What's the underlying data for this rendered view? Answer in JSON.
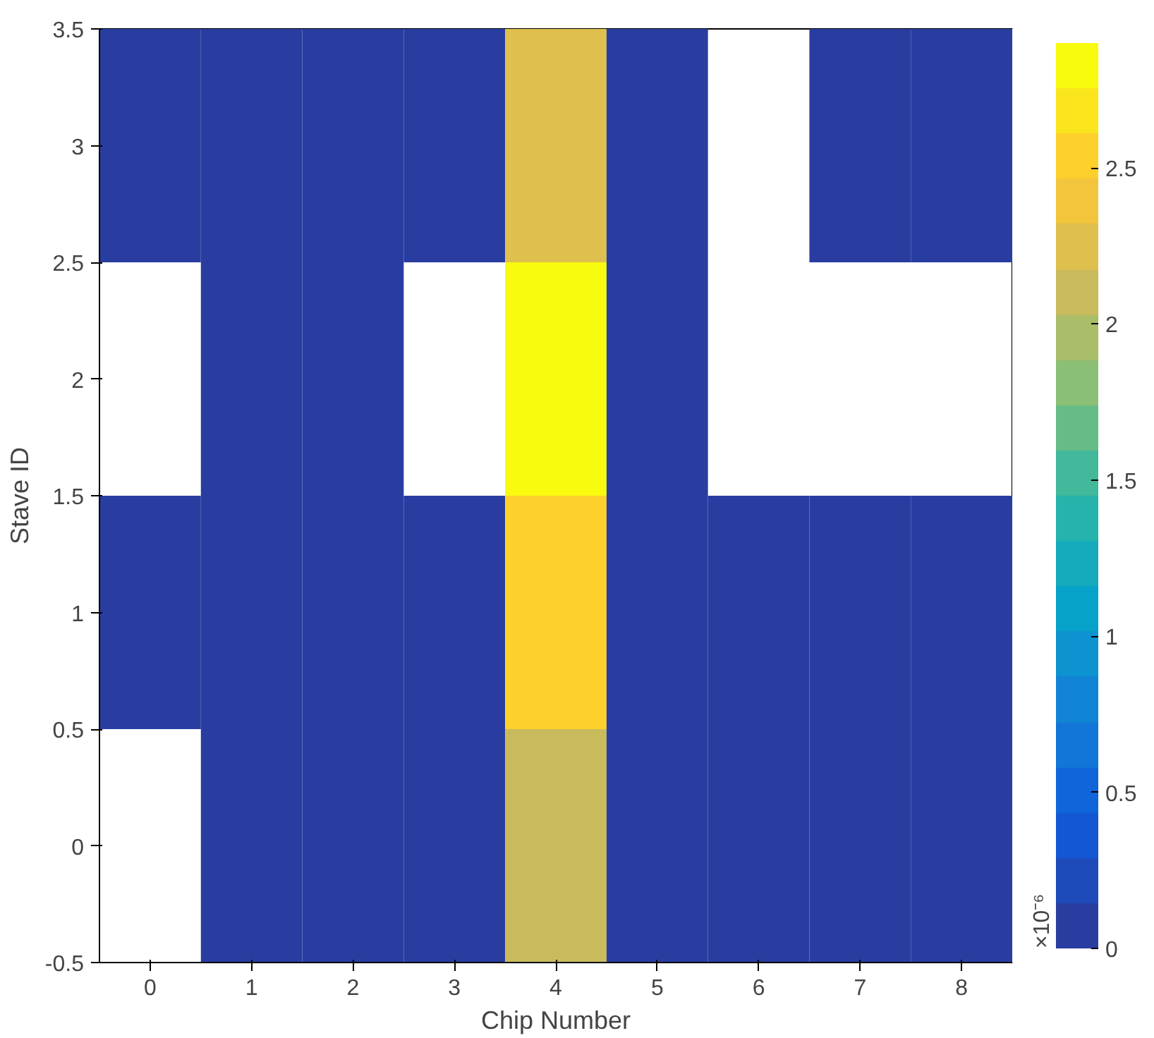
{
  "chart_data": {
    "type": "heatmap",
    "xlabel": "Chip Number",
    "ylabel": "Stave ID",
    "clabel": "×10⁻⁶",
    "categories": [
      "0",
      "1",
      "2",
      "3",
      "4",
      "5",
      "6",
      "7",
      "8"
    ],
    "ylim": [
      -0.5,
      3.5
    ],
    "yticks": [
      -0.5,
      0,
      0.5,
      1,
      1.5,
      2,
      2.5,
      3,
      3.5
    ],
    "cells": [
      [
        0,
        0,
        0,
        0,
        2.2,
        0,
        null,
        0,
        0
      ],
      [
        null,
        0,
        0,
        null,
        2.9,
        0,
        null,
        null,
        null
      ],
      [
        0,
        0,
        0,
        0,
        2.5,
        0,
        0,
        0,
        0
      ],
      [
        null,
        0,
        0,
        0,
        2.15,
        0,
        0,
        0,
        0
      ]
    ],
    "clim": [
      0,
      2.9
    ],
    "cticks": [
      0,
      0.5,
      1,
      1.5,
      2,
      2.5
    ],
    "grid": false
  }
}
